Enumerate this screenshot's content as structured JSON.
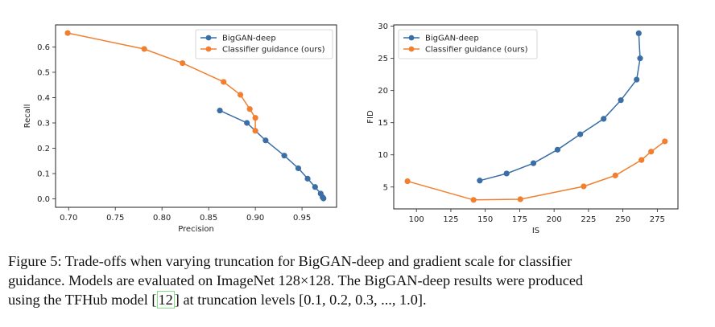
{
  "figure": {
    "caption_lines": [
      "Figure 5:  Trade-offs when varying truncation for BigGAN-deep and gradient scale for classifier",
      "guidance. Models are evaluated on ImageNet 128×128. The BigGAN-deep results were produced"
    ],
    "caption_line3_before": "using the TFHub model [",
    "caption_ref": "12",
    "caption_line3_after": "] at truncation levels [0.1, 0.2, 0.3, ..., 1.0]."
  },
  "colors": {
    "biggan": "#3a6ea5",
    "classifier": "#f08030"
  },
  "chart_data": [
    {
      "type": "line",
      "title": "",
      "xlabel": "Precision",
      "ylabel": "Recall",
      "xlim": [
        0.686,
        0.987
      ],
      "ylim": [
        -0.033,
        0.687
      ],
      "xticks": [
        0.7,
        0.75,
        0.8,
        0.85,
        0.9,
        0.95
      ],
      "xtick_labels": [
        "0.70",
        "0.75",
        "0.80",
        "0.85",
        "0.90",
        "0.95"
      ],
      "yticks": [
        0.0,
        0.1,
        0.2,
        0.3,
        0.4,
        0.5,
        0.6
      ],
      "ytick_labels": [
        "0.0",
        "0.1",
        "0.2",
        "0.3",
        "0.4",
        "0.5",
        "0.6"
      ],
      "grid": false,
      "legend_position": "top-right",
      "series": [
        {
          "name": "BigGAN-deep",
          "color": "#3a6ea5",
          "x": [
            0.862,
            0.891,
            0.911,
            0.931,
            0.946,
            0.956,
            0.964,
            0.97,
            0.972,
            0.973
          ],
          "y": [
            0.349,
            0.3,
            0.231,
            0.171,
            0.121,
            0.08,
            0.047,
            0.021,
            0.007,
            0.002
          ]
        },
        {
          "name": "Classifier guidance (ours)",
          "color": "#f08030",
          "x": [
            0.699,
            0.781,
            0.822,
            0.866,
            0.884,
            0.894,
            0.9,
            0.9
          ],
          "y": [
            0.655,
            0.592,
            0.536,
            0.462,
            0.411,
            0.355,
            0.32,
            0.269
          ]
        }
      ]
    },
    {
      "type": "line",
      "title": "",
      "xlabel": "IS",
      "ylabel": "FID",
      "xlim": [
        83.5,
        290
      ],
      "ylim": [
        1.6,
        30.2
      ],
      "xticks": [
        100,
        125,
        150,
        175,
        200,
        225,
        250,
        275
      ],
      "xtick_labels": [
        "100",
        "125",
        "150",
        "175",
        "200",
        "225",
        "250",
        "275"
      ],
      "yticks": [
        5,
        10,
        15,
        20,
        25,
        30
      ],
      "ytick_labels": [
        "5",
        "10",
        "15",
        "20",
        "25",
        "30"
      ],
      "grid": false,
      "legend_position": "top-left",
      "series": [
        {
          "name": "BigGAN-deep",
          "color": "#3a6ea5",
          "x": [
            146,
            165.5,
            185,
            202.5,
            219,
            236,
            248.5,
            260,
            262.5,
            261.5
          ],
          "y": [
            6.0,
            7.1,
            8.7,
            10.8,
            13.2,
            15.6,
            18.5,
            21.7,
            25.0,
            28.9
          ]
        },
        {
          "name": "Classifier guidance (ours)",
          "color": "#f08030",
          "x": [
            93.5,
            141.5,
            175.5,
            221.5,
            244.5,
            263.5,
            270.5,
            280.5
          ],
          "y": [
            5.9,
            3.0,
            3.1,
            5.1,
            6.8,
            9.2,
            10.5,
            12.1
          ]
        }
      ]
    }
  ]
}
